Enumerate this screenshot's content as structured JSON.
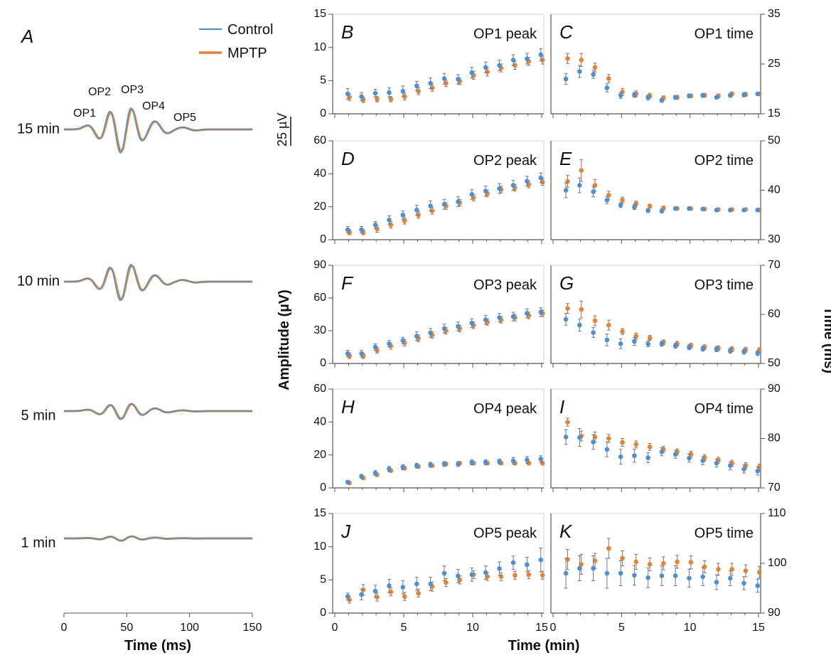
{
  "colors": {
    "control": "#4a90d9",
    "mptp": "#e8822e",
    "axis": "#555555",
    "error": "#777777"
  },
  "panel_a": {
    "letter": "A",
    "legend": [
      "Control",
      "MPTP"
    ],
    "xlabel": "Time (ms)",
    "xlim": [
      0,
      150
    ],
    "xticks": [
      "0",
      "50",
      "100",
      "150"
    ],
    "scale_bar_label": "25 µV",
    "peak_labels": [
      "OP1",
      "OP2",
      "OP3",
      "OP4",
      "OP5"
    ],
    "traces": [
      {
        "label": "15 min",
        "amp_scale": 1.0
      },
      {
        "label": "10 min",
        "amp_scale": 0.8
      },
      {
        "label": "5 min",
        "amp_scale": 0.35
      },
      {
        "label": "1 min",
        "amp_scale": 0.1
      }
    ]
  },
  "shared": {
    "xlabel": "Time (min)",
    "xticks": [
      "0",
      "5",
      "10",
      "15"
    ],
    "ylabel_left": "Amplitude (µV)",
    "ylabel_right": "Time (ms)"
  },
  "chart_data": [
    {
      "type": "scatter",
      "letter": "B",
      "title": "OP1 peak",
      "side": "left",
      "ylim": [
        0,
        15
      ],
      "yticks": [
        "0",
        "5",
        "10",
        "15"
      ],
      "x": [
        1,
        2,
        3,
        4,
        5,
        6,
        7,
        8,
        9,
        10,
        11,
        12,
        13,
        14,
        15
      ],
      "series": [
        {
          "name": "Control",
          "y": [
            3.0,
            2.6,
            3.1,
            3.2,
            3.4,
            4.2,
            4.6,
            5.3,
            5.2,
            6.2,
            7.0,
            7.3,
            8.1,
            8.3,
            8.9
          ],
          "err": [
            0.8,
            0.6,
            0.6,
            0.7,
            0.8,
            0.7,
            0.8,
            0.8,
            0.7,
            0.8,
            0.8,
            0.8,
            0.8,
            0.8,
            0.9
          ]
        },
        {
          "name": "MPTP",
          "y": [
            2.5,
            2.1,
            2.2,
            2.2,
            2.6,
            3.4,
            3.9,
            4.6,
            4.9,
            5.8,
            6.3,
            6.9,
            7.3,
            7.9,
            8.1
          ],
          "err": [
            0.5,
            0.4,
            0.4,
            0.4,
            0.5,
            0.5,
            0.5,
            0.5,
            0.5,
            0.6,
            0.6,
            0.6,
            0.6,
            0.6,
            0.6
          ]
        }
      ]
    },
    {
      "type": "scatter",
      "letter": "C",
      "title": "OP1 time",
      "side": "right",
      "ylim": [
        15,
        35
      ],
      "yticks": [
        "15",
        "25",
        "35"
      ],
      "x": [
        1,
        2,
        3,
        4,
        5,
        6,
        7,
        8,
        9,
        10,
        11,
        12,
        13,
        14,
        15
      ],
      "series": [
        {
          "name": "Control",
          "y": [
            22.0,
            23.5,
            22.9,
            20.2,
            18.7,
            18.8,
            18.3,
            17.7,
            18.3,
            18.6,
            18.7,
            18.3,
            18.7,
            18.8,
            19.0
          ],
          "err": [
            1.1,
            1.2,
            0.8,
            0.8,
            0.6,
            0.5,
            0.5,
            0.4,
            0.4,
            0.4,
            0.4,
            0.3,
            0.4,
            0.4,
            0.3
          ]
        },
        {
          "name": "MPTP",
          "y": [
            26.1,
            25.8,
            24.3,
            22.1,
            19.4,
            19.0,
            18.6,
            18.2,
            18.3,
            18.6,
            18.7,
            18.6,
            19.0,
            18.9,
            19.0
          ],
          "err": [
            1.0,
            1.3,
            0.9,
            0.8,
            0.7,
            0.6,
            0.5,
            0.4,
            0.4,
            0.4,
            0.4,
            0.4,
            0.4,
            0.4,
            0.3
          ]
        }
      ]
    },
    {
      "type": "scatter",
      "letter": "D",
      "title": "OP2 peak",
      "side": "left",
      "ylim": [
        0,
        60
      ],
      "yticks": [
        "0",
        "20",
        "40",
        "60"
      ],
      "x": [
        1,
        2,
        3,
        4,
        5,
        6,
        7,
        8,
        9,
        10,
        11,
        12,
        13,
        14,
        15
      ],
      "series": [
        {
          "name": "Control",
          "y": [
            6.0,
            6.0,
            9.0,
            12.0,
            15.0,
            18.0,
            20.5,
            21.5,
            23.0,
            27.5,
            29.5,
            31.0,
            33.0,
            35.5,
            37.5
          ],
          "err": [
            2,
            2,
            2,
            2.5,
            2.5,
            3,
            3,
            3,
            3,
            3,
            3,
            3,
            3,
            3,
            3
          ]
        },
        {
          "name": "MPTP",
          "y": [
            4.5,
            4.5,
            6.5,
            9.0,
            11.5,
            15.0,
            17.5,
            20.5,
            22.5,
            25.5,
            28.0,
            30.5,
            31.5,
            33.5,
            35.0
          ],
          "err": [
            1.5,
            1.5,
            2,
            2,
            2,
            2,
            2,
            2,
            2,
            2,
            2,
            2,
            2,
            2,
            2
          ]
        }
      ]
    },
    {
      "type": "scatter",
      "letter": "E",
      "title": "OP2 time",
      "side": "right",
      "ylim": [
        30,
        50
      ],
      "yticks": [
        "30",
        "40",
        "50"
      ],
      "x": [
        1,
        2,
        3,
        4,
        5,
        6,
        7,
        8,
        9,
        10,
        11,
        12,
        13,
        14,
        15
      ],
      "series": [
        {
          "name": "Control",
          "y": [
            40.0,
            41.0,
            39.7,
            38.0,
            37.0,
            36.6,
            35.9,
            35.8,
            36.3,
            36.3,
            36.2,
            36.0,
            36.0,
            36.0,
            36.0
          ],
          "err": [
            1.5,
            1.5,
            1.0,
            0.7,
            0.5,
            0.5,
            0.4,
            0.4,
            0.3,
            0.3,
            0.3,
            0.3,
            0.3,
            0.3,
            0.3
          ]
        },
        {
          "name": "MPTP",
          "y": [
            41.8,
            44.0,
            41.0,
            39.0,
            38.0,
            37.3,
            36.8,
            36.4,
            36.3,
            36.3,
            36.2,
            36.1,
            36.1,
            36.1,
            36.0
          ],
          "err": [
            1.2,
            2.2,
            1.2,
            0.8,
            0.6,
            0.5,
            0.4,
            0.4,
            0.3,
            0.3,
            0.3,
            0.3,
            0.3,
            0.3,
            0.3
          ]
        }
      ]
    },
    {
      "type": "scatter",
      "letter": "F",
      "title": "OP3 peak",
      "side": "left",
      "ylim": [
        0,
        90
      ],
      "yticks": [
        "0",
        "30",
        "60",
        "90"
      ],
      "x": [
        1,
        2,
        3,
        4,
        5,
        6,
        7,
        8,
        9,
        10,
        11,
        12,
        13,
        14,
        15
      ],
      "series": [
        {
          "name": "Control",
          "y": [
            9.0,
            9.0,
            15.0,
            18.0,
            21.0,
            25.0,
            28.0,
            32.0,
            34.0,
            37.0,
            40.0,
            42.0,
            43.0,
            46.0,
            47.0
          ],
          "err": [
            3,
            3,
            3,
            3,
            3,
            4,
            4,
            4,
            4,
            4,
            4,
            4,
            4,
            4,
            4
          ]
        },
        {
          "name": "MPTP",
          "y": [
            7.0,
            7.0,
            12.0,
            16.0,
            19.0,
            23.0,
            26.0,
            30.0,
            32.0,
            35.0,
            38.0,
            40.0,
            42.0,
            44.0,
            46.0
          ],
          "err": [
            2.5,
            2.5,
            2.5,
            3,
            3,
            3,
            3,
            3,
            3,
            3,
            3,
            3,
            3,
            3,
            3
          ]
        }
      ]
    },
    {
      "type": "scatter",
      "letter": "G",
      "title": "OP3 time",
      "side": "right",
      "ylim": [
        50,
        70
      ],
      "yticks": [
        "50",
        "60",
        "70"
      ],
      "x": [
        1,
        2,
        3,
        4,
        5,
        6,
        7,
        8,
        9,
        10,
        11,
        12,
        13,
        14,
        15
      ],
      "series": [
        {
          "name": "Control",
          "y": [
            59.0,
            57.8,
            56.3,
            54.8,
            54.0,
            54.5,
            54.0,
            54.0,
            53.6,
            53.3,
            53.0,
            52.9,
            52.6,
            52.4,
            52.1
          ],
          "err": [
            1.2,
            1.2,
            1.0,
            1.2,
            1.0,
            0.8,
            0.6,
            0.5,
            0.5,
            0.5,
            0.5,
            0.5,
            0.5,
            0.5,
            0.5
          ]
        },
        {
          "name": "MPTP",
          "y": [
            61.2,
            61.0,
            58.7,
            57.8,
            56.5,
            55.6,
            55.2,
            54.3,
            54.0,
            53.6,
            53.3,
            53.1,
            52.9,
            52.8,
            52.7
          ],
          "err": [
            1.0,
            1.7,
            1.0,
            1.0,
            0.6,
            0.6,
            0.5,
            0.5,
            0.5,
            0.5,
            0.5,
            0.5,
            0.5,
            0.5,
            0.5
          ]
        }
      ]
    },
    {
      "type": "scatter",
      "letter": "H",
      "title": "OP4 peak",
      "side": "left",
      "ylim": [
        0,
        60
      ],
      "yticks": [
        "0",
        "20",
        "40",
        "60"
      ],
      "x": [
        1,
        2,
        3,
        4,
        5,
        6,
        7,
        8,
        9,
        10,
        11,
        12,
        13,
        14,
        15
      ],
      "series": [
        {
          "name": "Control",
          "y": [
            3.5,
            7.0,
            9.0,
            11.5,
            12.5,
            13.5,
            14.0,
            14.5,
            14.5,
            15.5,
            15.5,
            16.0,
            16.5,
            17.0,
            17.5
          ],
          "err": [
            1,
            1.2,
            1.5,
            1.5,
            1.5,
            1.5,
            1.5,
            1.5,
            1.5,
            1.5,
            1.5,
            1.5,
            2,
            2,
            2
          ]
        },
        {
          "name": "MPTP",
          "y": [
            3.0,
            6.0,
            8.0,
            10.5,
            12.0,
            13.0,
            13.5,
            14.5,
            15.0,
            15.0,
            15.0,
            15.0,
            15.0,
            15.0,
            15.0
          ],
          "err": [
            1,
            1,
            1,
            1,
            1,
            1,
            1,
            1,
            1,
            1,
            1,
            1,
            1,
            1,
            1
          ]
        }
      ]
    },
    {
      "type": "scatter",
      "letter": "I",
      "title": "OP4 time",
      "side": "right",
      "ylim": [
        70,
        90
      ],
      "yticks": [
        "70",
        "80",
        "90"
      ],
      "x": [
        1,
        2,
        3,
        4,
        5,
        6,
        7,
        8,
        9,
        10,
        11,
        12,
        13,
        14,
        15
      ],
      "series": [
        {
          "name": "Control",
          "y": [
            80.3,
            80.2,
            79.3,
            77.8,
            76.3,
            76.5,
            76.1,
            77.3,
            76.8,
            76.0,
            75.5,
            75.0,
            74.5,
            73.8,
            73.4
          ],
          "err": [
            1.5,
            1.8,
            1.5,
            1.5,
            1.5,
            1.3,
            1.0,
            0.8,
            0.8,
            0.8,
            0.8,
            0.8,
            0.8,
            0.8,
            0.8
          ]
        },
        {
          "name": "MPTP",
          "y": [
            83.3,
            80.5,
            80.3,
            80.0,
            79.2,
            78.8,
            78.3,
            77.8,
            77.3,
            76.8,
            76.1,
            75.6,
            75.0,
            74.5,
            74.2
          ],
          "err": [
            0.8,
            1.0,
            1.0,
            0.8,
            0.8,
            0.7,
            0.7,
            0.6,
            0.6,
            0.6,
            0.6,
            0.6,
            0.6,
            0.6,
            0.6
          ]
        }
      ]
    },
    {
      "type": "scatter",
      "letter": "J",
      "title": "OP5 peak",
      "side": "left",
      "ylim": [
        0,
        15
      ],
      "yticks": [
        "0",
        "5",
        "10",
        "15"
      ],
      "x": [
        1,
        2,
        3,
        4,
        5,
        6,
        7,
        8,
        9,
        10,
        11,
        12,
        13,
        14,
        15
      ],
      "series": [
        {
          "name": "Control",
          "y": [
            2.5,
            2.8,
            3.3,
            4.1,
            3.9,
            4.4,
            4.4,
            6.0,
            5.6,
            5.8,
            6.1,
            6.7,
            7.6,
            7.3,
            8.0
          ],
          "err": [
            0.5,
            0.8,
            0.9,
            1.0,
            1.0,
            1.0,
            1.0,
            1.1,
            1.0,
            1.0,
            1.0,
            1.0,
            1.0,
            1.1,
            1.8
          ]
        },
        {
          "name": "MPTP",
          "y": [
            2.0,
            3.5,
            2.4,
            3.2,
            2.5,
            3.0,
            4.0,
            4.6,
            5.0,
            5.8,
            5.5,
            5.5,
            5.7,
            5.8,
            5.7
          ],
          "err": [
            0.5,
            0.8,
            0.6,
            0.6,
            0.6,
            0.6,
            0.7,
            0.6,
            0.6,
            0.6,
            0.6,
            0.6,
            0.6,
            0.6,
            0.6
          ]
        }
      ]
    },
    {
      "type": "scatter",
      "letter": "K",
      "title": "OP5 time",
      "side": "right",
      "ylim": [
        90,
        110
      ],
      "yticks": [
        "90",
        "100",
        "110"
      ],
      "x": [
        1,
        2,
        3,
        4,
        5,
        6,
        7,
        8,
        9,
        10,
        11,
        12,
        13,
        14,
        15
      ],
      "series": [
        {
          "name": "Control",
          "y": [
            98.0,
            99.0,
            99.0,
            98.0,
            98.0,
            97.6,
            97.1,
            97.5,
            97.5,
            97.0,
            97.3,
            96.2,
            97.0,
            96.0,
            95.5
          ],
          "err": [
            3,
            2.5,
            2.5,
            3,
            2.5,
            2,
            2,
            2,
            2,
            1.8,
            1.8,
            1.5,
            1.5,
            1.3,
            1.3
          ]
        },
        {
          "name": "MPTP",
          "y": [
            100.8,
            99.8,
            100.5,
            103.0,
            101.0,
            100.3,
            99.8,
            100.0,
            100.3,
            100.2,
            99.3,
            98.8,
            98.8,
            98.5,
            98.2
          ],
          "err": [
            2,
            2,
            1.5,
            2,
            1.5,
            1.5,
            1.3,
            1.3,
            1.3,
            1.3,
            1.2,
            1.2,
            1.2,
            1.2,
            1.2
          ]
        }
      ]
    }
  ]
}
